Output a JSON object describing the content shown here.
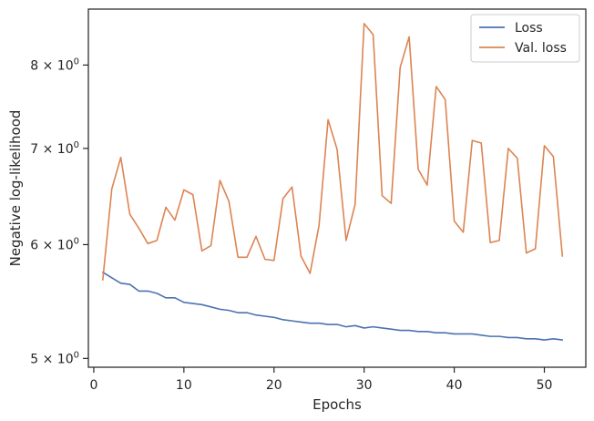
{
  "chart_data": {
    "type": "line",
    "title": "",
    "xlabel": "Epochs",
    "ylabel": "Negative log-likelihood",
    "yscale": "log",
    "xlim": [
      -0.6,
      54.6
    ],
    "ylim": [
      4.93,
      8.75
    ],
    "xticks": [
      0,
      10,
      20,
      30,
      40,
      50
    ],
    "xtick_labels": [
      "0",
      "10",
      "20",
      "30",
      "40",
      "50"
    ],
    "yticks": [
      5,
      6,
      7,
      8
    ],
    "ytick_labels": [
      {
        "mantissa": "5",
        "times": "×",
        "base": "10",
        "exp": "0"
      },
      {
        "mantissa": "6",
        "times": "×",
        "base": "10",
        "exp": "0"
      },
      {
        "mantissa": "7",
        "times": "×",
        "base": "10",
        "exp": "0"
      },
      {
        "mantissa": "8",
        "times": "×",
        "base": "10",
        "exp": "0"
      }
    ],
    "grid": false,
    "legend_position": "top-right",
    "x": [
      1,
      2,
      3,
      4,
      5,
      6,
      7,
      8,
      9,
      10,
      11,
      12,
      13,
      14,
      15,
      16,
      17,
      18,
      19,
      20,
      21,
      22,
      23,
      24,
      25,
      26,
      27,
      28,
      29,
      30,
      31,
      32,
      33,
      34,
      35,
      36,
      37,
      38,
      39,
      40,
      41,
      42,
      43,
      44,
      45,
      46,
      47,
      48,
      49,
      50,
      51,
      52
    ],
    "series": [
      {
        "name": "Loss",
        "color": "#4c72b0",
        "values": [
          5.74,
          5.69,
          5.64,
          5.63,
          5.57,
          5.57,
          5.55,
          5.51,
          5.51,
          5.47,
          5.46,
          5.45,
          5.43,
          5.41,
          5.4,
          5.38,
          5.38,
          5.36,
          5.35,
          5.34,
          5.32,
          5.31,
          5.3,
          5.29,
          5.29,
          5.28,
          5.28,
          5.26,
          5.27,
          5.25,
          5.26,
          5.25,
          5.24,
          5.23,
          5.23,
          5.22,
          5.22,
          5.21,
          5.21,
          5.2,
          5.2,
          5.2,
          5.19,
          5.18,
          5.18,
          5.17,
          5.17,
          5.16,
          5.16,
          5.15,
          5.16,
          5.15
        ]
      },
      {
        "name": "Val. loss",
        "color": "#dd8452",
        "values": [
          5.67,
          6.56,
          6.9,
          6.3,
          6.16,
          6.01,
          6.04,
          6.37,
          6.24,
          6.55,
          6.5,
          5.94,
          5.99,
          6.65,
          6.43,
          5.88,
          5.88,
          6.08,
          5.86,
          5.85,
          6.46,
          6.58,
          5.89,
          5.73,
          6.19,
          7.33,
          6.99,
          6.04,
          6.4,
          8.55,
          8.4,
          6.49,
          6.41,
          7.97,
          8.37,
          6.77,
          6.6,
          7.73,
          7.57,
          6.23,
          6.12,
          7.09,
          7.06,
          6.02,
          6.04,
          7.0,
          6.89,
          5.92,
          5.96,
          7.03,
          6.91,
          5.89
        ]
      }
    ]
  }
}
